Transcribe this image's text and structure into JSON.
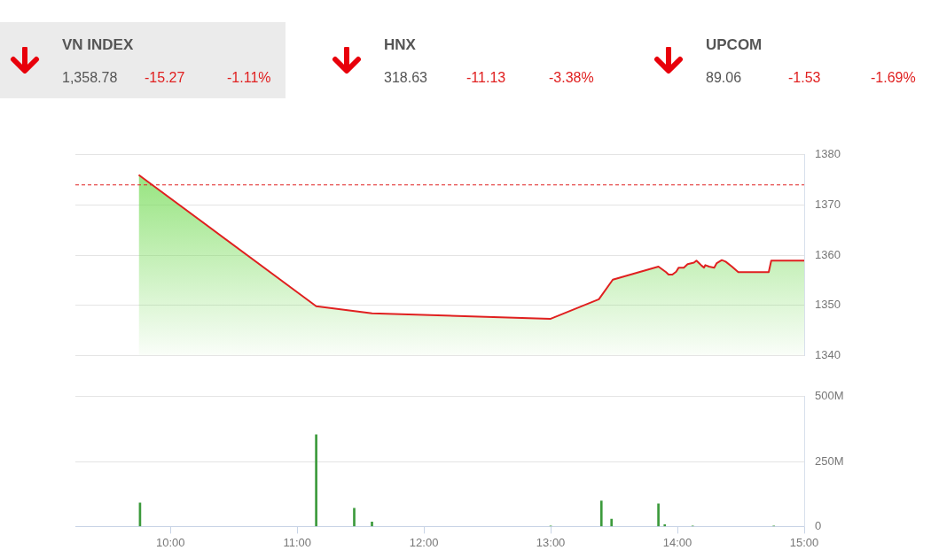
{
  "chart_data": [
    {
      "type": "other",
      "categories": [
        "VN INDEX",
        "HNX",
        "UPCOM"
      ],
      "annotations": [
        "1,358.78",
        "-15.27",
        "-1.11%",
        "318.63",
        "-11.13",
        "-3.38%",
        "89.06",
        "-1.53",
        "-1.69%"
      ]
    },
    {
      "type": "area",
      "tick_labels": "y",
      "grid": "y",
      "xlim": [
        9.25,
        15
      ],
      "ylim": [
        1340,
        1380
      ],
      "yticks": [
        1340,
        1350,
        1360,
        1370,
        1380
      ],
      "series": [
        {
          "color": "#e02020",
          "x": [
            9.75,
            11.15,
            11.59,
            13.0,
            13.38,
            13.49,
            13.85,
            13.91,
            13.93,
            13.96,
            13.99,
            14.01,
            14.05,
            14.08,
            14.13,
            14.15,
            14.17,
            14.19,
            14.21,
            14.22,
            14.25,
            14.29,
            14.31,
            14.35,
            14.38,
            14.43,
            14.48,
            14.72,
            14.74,
            15.0
          ],
          "values": [
            1376,
            1349.8,
            1348.4,
            1347.3,
            1351.2,
            1355.1,
            1357.7,
            1356.6,
            1356.1,
            1356.1,
            1356.7,
            1357.5,
            1357.5,
            1358.2,
            1358.5,
            1358.9,
            1358.4,
            1357.9,
            1357.5,
            1358,
            1357.7,
            1357.5,
            1358.4,
            1359,
            1358.7,
            1357.7,
            1356.6,
            1356.6,
            1358.9,
            1358.9
          ]
        }
      ],
      "ref_lines": [
        {
          "axis": "y",
          "value": 1374,
          "color": "#e02020",
          "line_style": "dashed"
        }
      ]
    },
    {
      "type": "bar",
      "grid": "y",
      "xlim": [
        9.25,
        15
      ],
      "xticks": [
        {
          "value": 10,
          "label": "10:00"
        },
        {
          "value": 11,
          "label": "11:00"
        },
        {
          "value": 12,
          "label": "12:00"
        },
        {
          "value": 13,
          "label": "13:00"
        },
        {
          "value": 14,
          "label": "14:00"
        },
        {
          "value": 15,
          "label": "15:00"
        }
      ],
      "ylim": [
        0,
        500000000
      ],
      "yticks": [
        {
          "value": 0,
          "label": "0"
        },
        {
          "value": 250000000,
          "label": "250M"
        },
        {
          "value": 500000000,
          "label": "500M"
        }
      ],
      "series": [
        {
          "color": "#3c9a3c",
          "x": [
            9.76,
            11.15,
            11.45,
            11.59,
            13.0,
            13.4,
            13.48,
            13.85,
            13.9,
            14.12,
            14.76
          ],
          "values": [
            91000000,
            353000000,
            70000000,
            17000000,
            2000000,
            98000000,
            28000000,
            87000000,
            7000000,
            2000000,
            2000000
          ]
        }
      ]
    }
  ]
}
